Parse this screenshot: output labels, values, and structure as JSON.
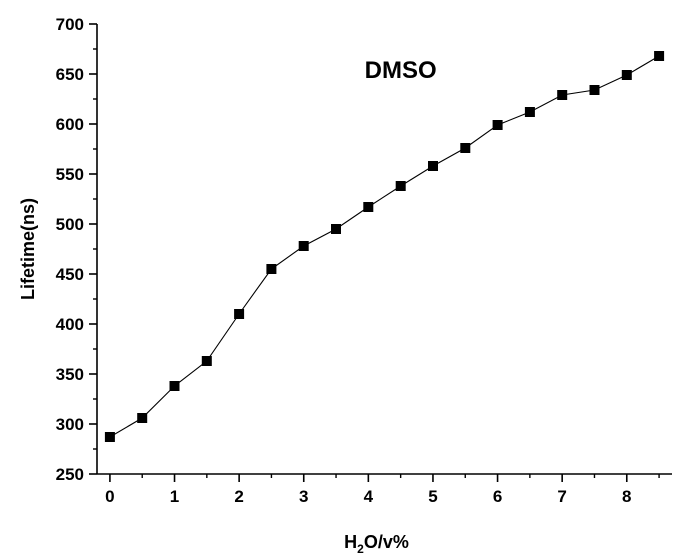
{
  "chart_data": {
    "type": "line",
    "title": "",
    "annotation": "DMSO",
    "xlabel": {
      "main": "H",
      "sub": "2",
      "rest": "O/v%"
    },
    "ylabel": "Lifetime(ns)",
    "xlim": [
      -0.2,
      8.7
    ],
    "ylim": [
      250,
      700
    ],
    "xticks": [
      0,
      1,
      2,
      3,
      4,
      5,
      6,
      7,
      8
    ],
    "yticks": [
      250,
      300,
      350,
      400,
      450,
      500,
      550,
      600,
      650,
      700
    ],
    "grid": false,
    "marker": "square",
    "color": "#000000",
    "series": [
      {
        "x": [
          0,
          0.5,
          1,
          1.5,
          2,
          2.5,
          3,
          3.5,
          4,
          4.5,
          5,
          5.5,
          6,
          6.5,
          7,
          7.5,
          8,
          8.5
        ],
        "values": [
          287,
          306,
          338,
          363,
          410,
          455,
          478,
          495,
          517,
          538,
          558,
          576,
          599,
          612,
          629,
          634,
          649,
          668
        ]
      }
    ]
  }
}
